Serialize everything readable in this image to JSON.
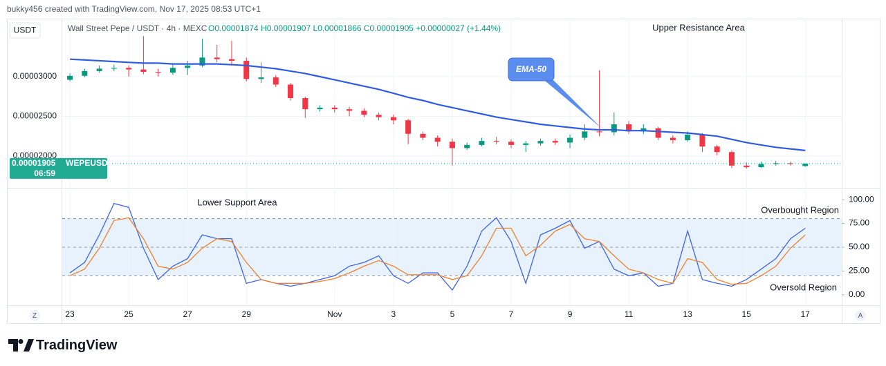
{
  "header": "bukky456 created with TradingView.com, Nov 17, 2025 08:53 UTC+1",
  "currency": "USDT",
  "symbol_line": "Wall Street Pepe / USDT · 4h · MEXC",
  "ohlc_line": "O0.00001874 H0.00001907 L0.00001866 C0.00001905 +0.00000027 (+1.44%)",
  "footer": "TradingView",
  "corner_left": "Z",
  "corner_right": "A",
  "chart_data": [
    {
      "type": "candlestick",
      "up_color": "#089981",
      "down_color": "#f23645",
      "ylim": [
        1.6e-05,
        3.73e-05
      ],
      "yticks": [
        {
          "value": 3e-05,
          "label": "0.00003000"
        },
        {
          "value": 2.5e-05,
          "label": "0.00002500"
        },
        {
          "value": 2e-05,
          "label": "0.00002000"
        }
      ],
      "xlim": [
        22.74,
        49.24
      ],
      "grid": true,
      "x": [
        23,
        23.5,
        24,
        24.5,
        25,
        25.5,
        26,
        26.5,
        27,
        27.5,
        28,
        28.5,
        29,
        29.5,
        30,
        30.5,
        31,
        31.5,
        32,
        32.5,
        33,
        33.5,
        34,
        34.5,
        35,
        35.5,
        36,
        36.5,
        37,
        37.5,
        38,
        38.5,
        39,
        39.5,
        40,
        40.5,
        41,
        41.5,
        42,
        42.5,
        43,
        43.5,
        44,
        44.5,
        45,
        45.5,
        46,
        46.5,
        47,
        47.5,
        48
      ],
      "open": [
        2.96e-05,
        3.01e-05,
        3.07e-05,
        3.1e-05,
        3.11e-05,
        3.09e-05,
        3.06e-05,
        3.05e-05,
        3.11e-05,
        3.14e-05,
        3.24e-05,
        3.22e-05,
        3.2e-05,
        2.97e-05,
        2.99e-05,
        2.9e-05,
        2.73e-05,
        2.59e-05,
        2.61e-05,
        2.59e-05,
        2.57e-05,
        2.52e-05,
        2.49e-05,
        2.45e-05,
        2.28e-05,
        2.23e-05,
        2.18e-05,
        2.1e-05,
        2.14e-05,
        2.19e-05,
        2.18e-05,
        2.14e-05,
        2.16e-05,
        2.19e-05,
        2.17e-05,
        2.23e-05,
        2.31e-05,
        2.3e-05,
        2.4e-05,
        2.31e-05,
        2.35e-05,
        2.23e-05,
        2.2e-05,
        2.27e-05,
        2.12e-05,
        2.05e-05,
        1.88e-05,
        1.86e-05,
        1.9e-05,
        1.91e-05,
        1.874e-05
      ],
      "high": [
        3.04e-05,
        3.1e-05,
        3.14e-05,
        3.15e-05,
        3.14e-05,
        3.51e-05,
        3.1e-05,
        3.15e-05,
        3.2e-05,
        3.48e-05,
        3.4e-05,
        3.45e-05,
        3.24e-05,
        3.18e-05,
        3.02e-05,
        2.92e-05,
        2.75e-05,
        2.64e-05,
        2.64e-05,
        2.62e-05,
        2.6e-05,
        2.55e-05,
        2.52e-05,
        2.47e-05,
        2.31e-05,
        2.26e-05,
        2.22e-05,
        2.17e-05,
        2.23e-05,
        2.24e-05,
        2.21e-05,
        2.19e-05,
        2.22e-05,
        2.22e-05,
        2.27e-05,
        2.4e-05,
        3.08e-05,
        2.55e-05,
        2.44e-05,
        2.4e-05,
        2.37e-05,
        2.26e-05,
        2.31e-05,
        2.29e-05,
        2.14e-05,
        2.07e-05,
        1.92e-05,
        1.93e-05,
        1.94e-05,
        1.93e-05,
        1.907e-05
      ],
      "low": [
        2.94e-05,
        2.99e-05,
        3.05e-05,
        3.07e-05,
        3e-05,
        3.03e-05,
        3e-05,
        3.02e-05,
        3.02e-05,
        3.12e-05,
        3.18e-05,
        3.15e-05,
        2.94e-05,
        2.92e-05,
        2.87e-05,
        2.7e-05,
        2.48e-05,
        2.56e-05,
        2.55e-05,
        2.5e-05,
        2.49e-05,
        2.45e-05,
        2.4e-05,
        2.15e-05,
        2.2e-05,
        2.12e-05,
        1.88e-05,
        2.08e-05,
        2.12e-05,
        2.15e-05,
        2.1e-05,
        2.05e-05,
        2.13e-05,
        2.14e-05,
        2.1e-05,
        2.2e-05,
        2.25e-05,
        2.26e-05,
        2.28e-05,
        2.28e-05,
        2.2e-05,
        2.16e-05,
        2.18e-05,
        2.05e-05,
        2.01e-05,
        1.85e-05,
        1.84e-05,
        1.85e-05,
        1.88e-05,
        1.88e-05,
        1.866e-05
      ],
      "close": [
        3.01e-05,
        3.07e-05,
        3.1e-05,
        3.11e-05,
        3.09e-05,
        3.06e-05,
        3.05e-05,
        3.11e-05,
        3.14e-05,
        3.24e-05,
        3.22e-05,
        3.2e-05,
        2.97e-05,
        2.99e-05,
        2.9e-05,
        2.73e-05,
        2.59e-05,
        2.61e-05,
        2.59e-05,
        2.57e-05,
        2.52e-05,
        2.49e-05,
        2.45e-05,
        2.28e-05,
        2.23e-05,
        2.18e-05,
        2.1e-05,
        2.14e-05,
        2.19e-05,
        2.18e-05,
        2.14e-05,
        2.16e-05,
        2.19e-05,
        2.17e-05,
        2.23e-05,
        2.31e-05,
        2.3e-05,
        2.4e-05,
        2.31e-05,
        2.35e-05,
        2.23e-05,
        2.2e-05,
        2.27e-05,
        2.12e-05,
        2.05e-05,
        1.88e-05,
        1.86e-05,
        1.9e-05,
        1.91e-05,
        1.9e-05,
        1.905e-05
      ],
      "ema": {
        "name": "EMA-50",
        "color": "#2f5be3",
        "values": [
          3.22e-05,
          3.21e-05,
          3.2e-05,
          3.19e-05,
          3.18e-05,
          3.17e-05,
          3.17e-05,
          3.16e-05,
          3.16e-05,
          3.16e-05,
          3.16e-05,
          3.15e-05,
          3.14e-05,
          3.12e-05,
          3.1e-05,
          3.07e-05,
          3.04e-05,
          3e-05,
          2.96e-05,
          2.92e-05,
          2.88e-05,
          2.84e-05,
          2.79e-05,
          2.74e-05,
          2.7e-05,
          2.65e-05,
          2.61e-05,
          2.57e-05,
          2.53e-05,
          2.49e-05,
          2.46e-05,
          2.43e-05,
          2.4e-05,
          2.38e-05,
          2.36e-05,
          2.34e-05,
          2.33e-05,
          2.33e-05,
          2.32e-05,
          2.32e-05,
          2.31e-05,
          2.3e-05,
          2.29e-05,
          2.27e-05,
          2.25e-05,
          2.21e-05,
          2.17e-05,
          2.14e-05,
          2.11e-05,
          2.09e-05,
          2.07e-05
        ]
      },
      "last_price": {
        "value": 1.905e-05,
        "label": "0.00001905",
        "color": "#22ab94"
      },
      "last_symbol": "WEPEUSDT",
      "countdown": "06:59",
      "annotation": "Upper Resistance Area"
    },
    {
      "type": "line",
      "ylim": [
        -11,
        111
      ],
      "yticks": [
        {
          "value": 100,
          "label": "100.00"
        },
        {
          "value": 75,
          "label": "75.00"
        },
        {
          "value": 50,
          "label": "50.00"
        },
        {
          "value": 25,
          "label": "25.00"
        },
        {
          "value": 0,
          "label": "0.00"
        }
      ],
      "xlim": [
        22.74,
        49.24
      ],
      "xticks": [
        23,
        25,
        27,
        29,
        {
          "value": 32,
          "label": "Nov"
        },
        {
          "value": 34,
          "label": "3"
        },
        {
          "value": 36,
          "label": "5"
        },
        {
          "value": 38,
          "label": "7"
        },
        {
          "value": 40,
          "label": "9"
        },
        {
          "value": 42,
          "label": "11"
        },
        {
          "value": 44,
          "label": "13"
        },
        {
          "value": 46,
          "label": "15"
        },
        {
          "value": 48,
          "label": "17"
        }
      ],
      "bands": [
        80,
        50,
        20
      ],
      "band_fill": [
        20,
        80
      ],
      "series": [
        {
          "color": "#3f63e8",
          "values": [
            23,
            34,
            63,
            96,
            92,
            49,
            16,
            30,
            38,
            63,
            59,
            59,
            12,
            16,
            12,
            9,
            12,
            16,
            20,
            30,
            34,
            41,
            20,
            12,
            23,
            23,
            5,
            30,
            67,
            81,
            56,
            12,
            63,
            70,
            78,
            49,
            56,
            27,
            20,
            23,
            9,
            12,
            67,
            16,
            12,
            9,
            16,
            27,
            38,
            59,
            70
          ]
        },
        {
          "color": "#f0802a",
          "values": [
            20,
            27,
            49,
            78,
            81,
            59,
            30,
            27,
            34,
            49,
            59,
            56,
            34,
            16,
            12,
            12,
            12,
            14,
            17,
            23,
            30,
            36,
            30,
            21,
            21,
            21,
            16,
            20,
            41,
            70,
            70,
            41,
            52,
            67,
            74,
            59,
            56,
            41,
            27,
            23,
            16,
            12,
            38,
            34,
            16,
            11,
            12,
            20,
            30,
            49,
            63
          ]
        }
      ],
      "annotations": [
        "Lower Support Area",
        "Overbought Region",
        "Oversold Region"
      ]
    }
  ]
}
